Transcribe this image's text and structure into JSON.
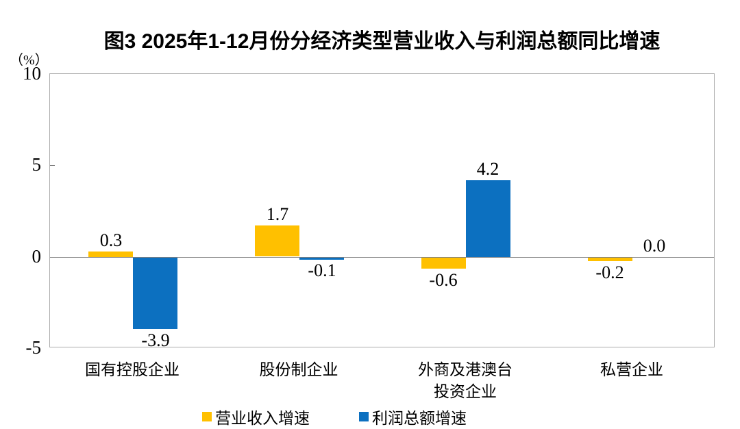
{
  "title": "图3 2025年1-12月份分经济类型营业收入与利润总额同比增速",
  "unit_label": "（%）",
  "legend": [
    {
      "label": "营业收入增速",
      "color": "#FFC000"
    },
    {
      "label": "利润总额增速",
      "color": "#0C70C0"
    }
  ],
  "chart_data": {
    "type": "bar",
    "title": "图3 2025年1-12月份分经济类型营业收入与利润总额同比增速",
    "categories": [
      "国有控股企业",
      "股份制企业",
      "外商及港澳台\n投资企业",
      "私营企业"
    ],
    "series": [
      {
        "name": "营业收入增速",
        "color": "#FFC000",
        "values": [
          0.3,
          1.7,
          -0.6,
          -0.2
        ]
      },
      {
        "name": "利润总额增速",
        "color": "#0C70C0",
        "values": [
          -3.9,
          -0.1,
          4.2,
          0.0
        ]
      }
    ],
    "value_labels": {
      "营业收入增速": [
        "0.3",
        "1.7",
        "-0.6",
        "-0.2"
      ],
      "利润总额增速": [
        "-3.9",
        "-0.1",
        "4.2",
        "0.0"
      ]
    },
    "xlabel": "",
    "ylabel": "（%）",
    "ylim": [
      -5,
      10
    ],
    "yticks": [
      10,
      5,
      0,
      -5
    ],
    "grid": false,
    "legend_position": "bottom"
  }
}
